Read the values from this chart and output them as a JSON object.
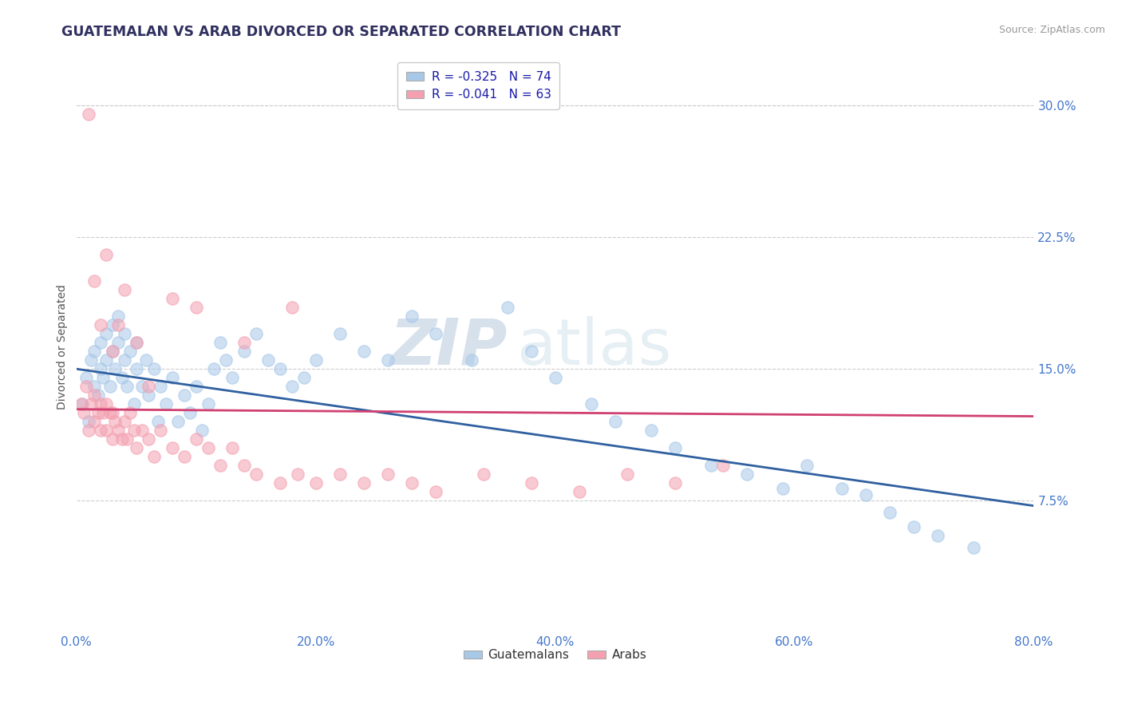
{
  "title": "GUATEMALAN VS ARAB DIVORCED OR SEPARATED CORRELATION CHART",
  "source": "Source: ZipAtlas.com",
  "ylabel": "Divorced or Separated",
  "xlim": [
    0.0,
    0.8
  ],
  "ylim": [
    0.0,
    0.325
  ],
  "yticks": [
    0.075,
    0.15,
    0.225,
    0.3
  ],
  "ytick_labels": [
    "7.5%",
    "15.0%",
    "22.5%",
    "30.0%"
  ],
  "xticks": [
    0.0,
    0.2,
    0.4,
    0.6,
    0.8
  ],
  "xtick_labels": [
    "0.0%",
    "20.0%",
    "40.0%",
    "60.0%",
    "80.0%"
  ],
  "blue_color": "#a8c8e8",
  "pink_color": "#f4a0b0",
  "blue_line_color": "#3060a0",
  "pink_line_color": "#d04070",
  "title_color": "#303060",
  "axis_label_color": "#4477cc",
  "watermark_zip": "ZIP",
  "watermark_atlas": "atlas",
  "legend_label_blue": "Guatemalans",
  "legend_label_pink": "Arabs",
  "blue_R": -0.325,
  "blue_N": 74,
  "pink_R": -0.041,
  "pink_N": 63,
  "blue_trend_x": [
    0.0,
    0.8
  ],
  "blue_trend_y": [
    0.15,
    0.072
  ],
  "pink_trend_x": [
    0.0,
    0.8
  ],
  "pink_trend_y": [
    0.127,
    0.123
  ],
  "blue_scatter_x": [
    0.005,
    0.008,
    0.01,
    0.012,
    0.015,
    0.015,
    0.018,
    0.02,
    0.02,
    0.022,
    0.025,
    0.025,
    0.028,
    0.03,
    0.03,
    0.032,
    0.035,
    0.035,
    0.038,
    0.04,
    0.04,
    0.042,
    0.045,
    0.048,
    0.05,
    0.05,
    0.055,
    0.058,
    0.06,
    0.065,
    0.068,
    0.07,
    0.075,
    0.08,
    0.085,
    0.09,
    0.095,
    0.1,
    0.105,
    0.11,
    0.115,
    0.12,
    0.125,
    0.13,
    0.14,
    0.15,
    0.16,
    0.17,
    0.18,
    0.19,
    0.2,
    0.22,
    0.24,
    0.26,
    0.28,
    0.3,
    0.33,
    0.36,
    0.38,
    0.4,
    0.43,
    0.45,
    0.48,
    0.5,
    0.53,
    0.56,
    0.59,
    0.61,
    0.64,
    0.66,
    0.68,
    0.7,
    0.72,
    0.75
  ],
  "blue_scatter_y": [
    0.13,
    0.145,
    0.12,
    0.155,
    0.14,
    0.16,
    0.135,
    0.15,
    0.165,
    0.145,
    0.155,
    0.17,
    0.14,
    0.16,
    0.175,
    0.15,
    0.165,
    0.18,
    0.145,
    0.155,
    0.17,
    0.14,
    0.16,
    0.13,
    0.15,
    0.165,
    0.14,
    0.155,
    0.135,
    0.15,
    0.12,
    0.14,
    0.13,
    0.145,
    0.12,
    0.135,
    0.125,
    0.14,
    0.115,
    0.13,
    0.15,
    0.165,
    0.155,
    0.145,
    0.16,
    0.17,
    0.155,
    0.15,
    0.14,
    0.145,
    0.155,
    0.17,
    0.16,
    0.155,
    0.18,
    0.17,
    0.155,
    0.185,
    0.16,
    0.145,
    0.13,
    0.12,
    0.115,
    0.105,
    0.095,
    0.09,
    0.082,
    0.095,
    0.082,
    0.078,
    0.068,
    0.06,
    0.055,
    0.048
  ],
  "pink_scatter_x": [
    0.004,
    0.006,
    0.008,
    0.01,
    0.012,
    0.015,
    0.015,
    0.018,
    0.02,
    0.02,
    0.022,
    0.025,
    0.025,
    0.028,
    0.03,
    0.03,
    0.032,
    0.035,
    0.038,
    0.04,
    0.042,
    0.045,
    0.048,
    0.05,
    0.055,
    0.06,
    0.065,
    0.07,
    0.08,
    0.09,
    0.1,
    0.11,
    0.12,
    0.13,
    0.14,
    0.15,
    0.17,
    0.185,
    0.2,
    0.22,
    0.24,
    0.26,
    0.28,
    0.3,
    0.34,
    0.38,
    0.42,
    0.46,
    0.5,
    0.54,
    0.01,
    0.015,
    0.02,
    0.025,
    0.03,
    0.035,
    0.04,
    0.05,
    0.06,
    0.08,
    0.1,
    0.14,
    0.18
  ],
  "pink_scatter_y": [
    0.13,
    0.125,
    0.14,
    0.115,
    0.13,
    0.12,
    0.135,
    0.125,
    0.115,
    0.13,
    0.125,
    0.115,
    0.13,
    0.125,
    0.11,
    0.125,
    0.12,
    0.115,
    0.11,
    0.12,
    0.11,
    0.125,
    0.115,
    0.105,
    0.115,
    0.11,
    0.1,
    0.115,
    0.105,
    0.1,
    0.11,
    0.105,
    0.095,
    0.105,
    0.095,
    0.09,
    0.085,
    0.09,
    0.085,
    0.09,
    0.085,
    0.09,
    0.085,
    0.08,
    0.09,
    0.085,
    0.08,
    0.09,
    0.085,
    0.095,
    0.295,
    0.2,
    0.175,
    0.215,
    0.16,
    0.175,
    0.195,
    0.165,
    0.14,
    0.19,
    0.185,
    0.165,
    0.185
  ]
}
